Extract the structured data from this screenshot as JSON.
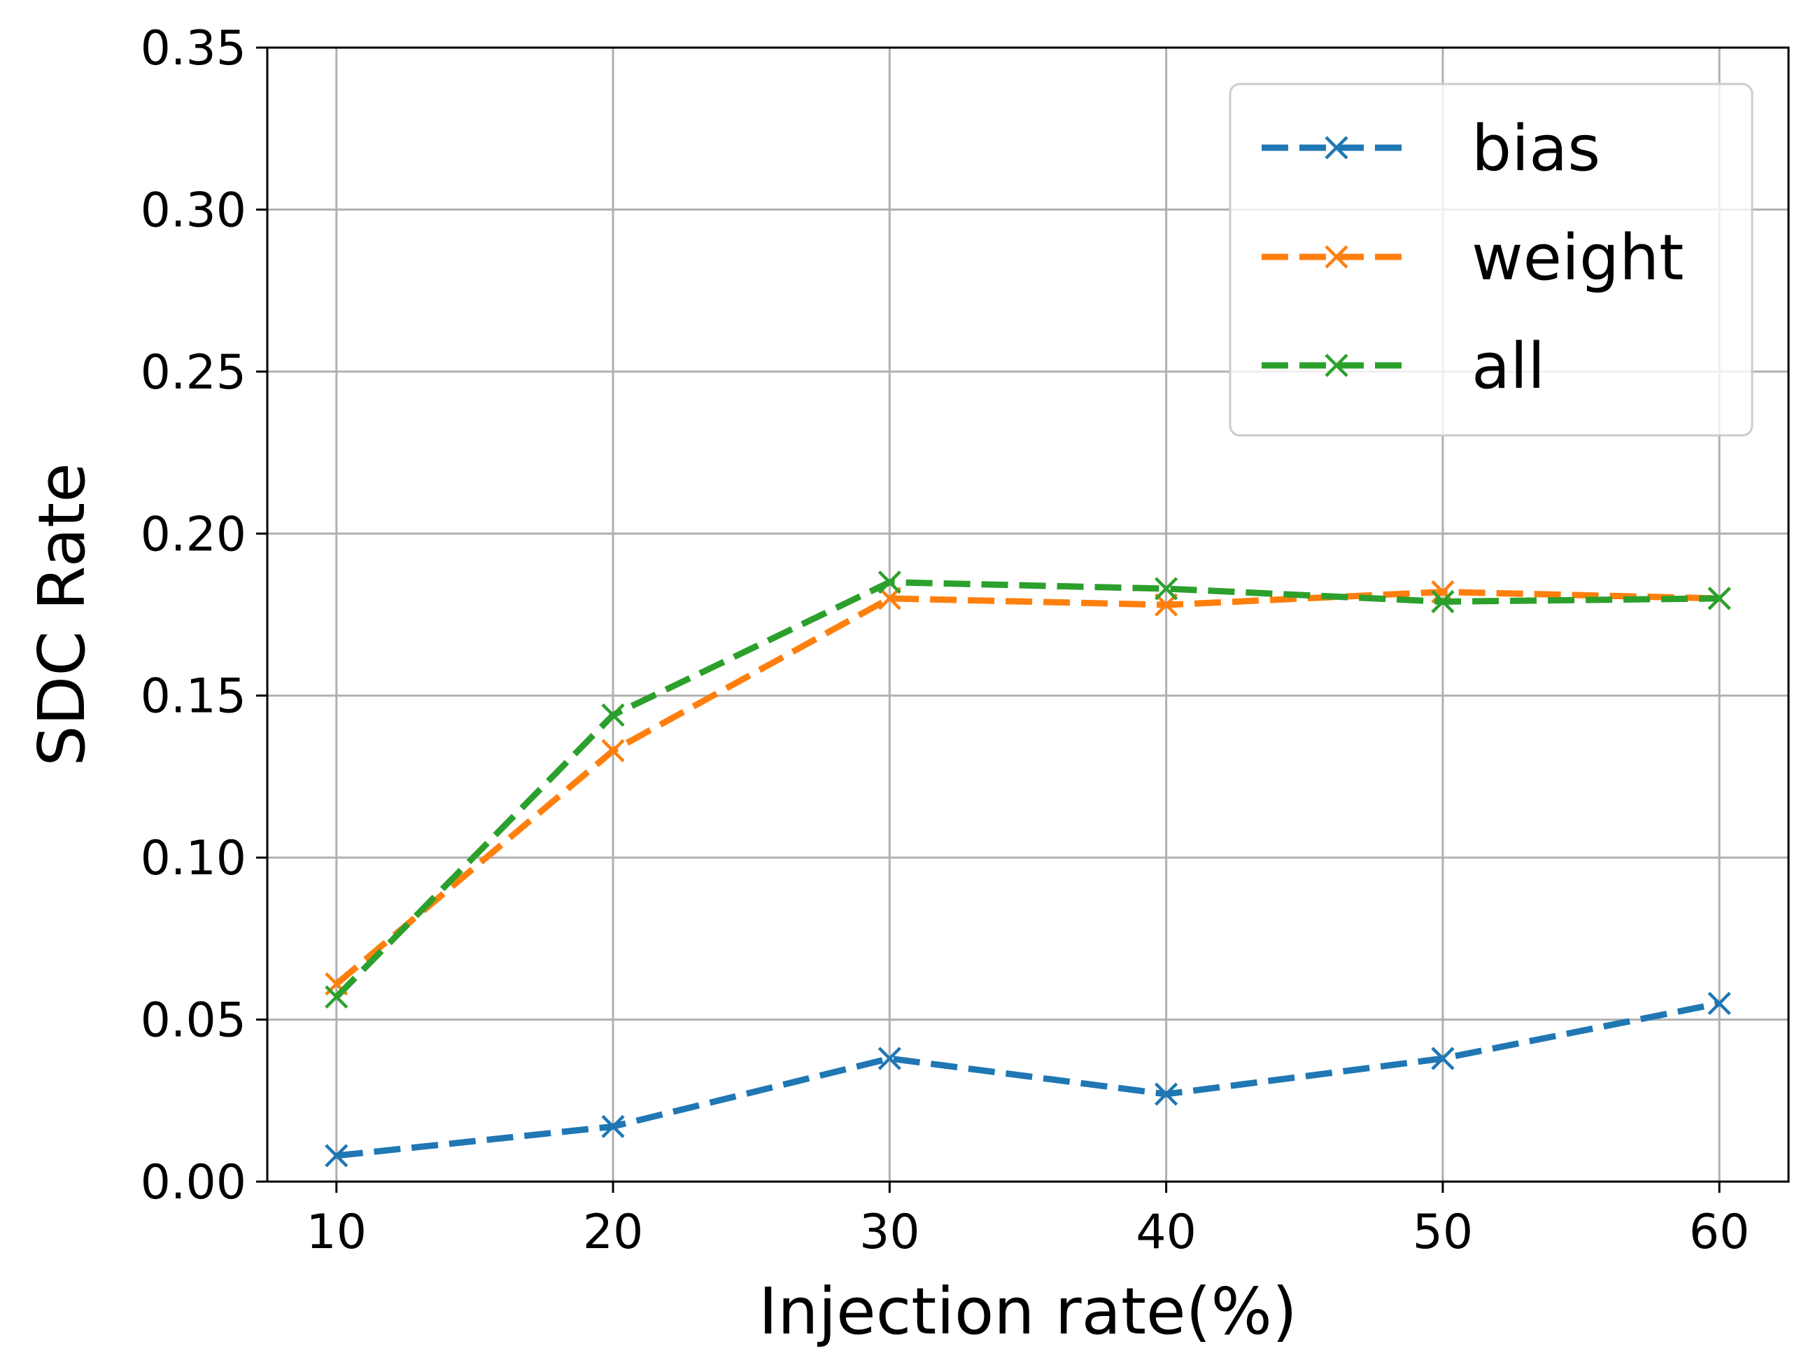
{
  "chart_data": {
    "type": "line",
    "x": [
      10,
      20,
      30,
      40,
      50,
      60
    ],
    "series": [
      {
        "name": "bias",
        "color": "#1f77b4",
        "values": [
          0.008,
          0.017,
          0.038,
          0.027,
          0.038,
          0.055
        ]
      },
      {
        "name": "weight",
        "color": "#ff7f0e",
        "values": [
          0.061,
          0.133,
          0.18,
          0.178,
          0.182,
          0.18
        ]
      },
      {
        "name": "all",
        "color": "#2ca02c",
        "values": [
          0.057,
          0.144,
          0.185,
          0.183,
          0.179,
          0.18
        ]
      }
    ],
    "xlabel": "Injection rate(%)",
    "ylabel": "SDC Rate",
    "xticks": [
      "10",
      "20",
      "30",
      "40",
      "50",
      "60"
    ],
    "yticks": [
      "0.00",
      "0.05",
      "0.10",
      "0.15",
      "0.20",
      "0.25",
      "0.30",
      "0.35"
    ],
    "xlim": [
      7.5,
      62.5
    ],
    "ylim": [
      0,
      0.35
    ],
    "grid": true,
    "legend_position": "top-right",
    "marker": "x",
    "line_style": "dashed"
  }
}
